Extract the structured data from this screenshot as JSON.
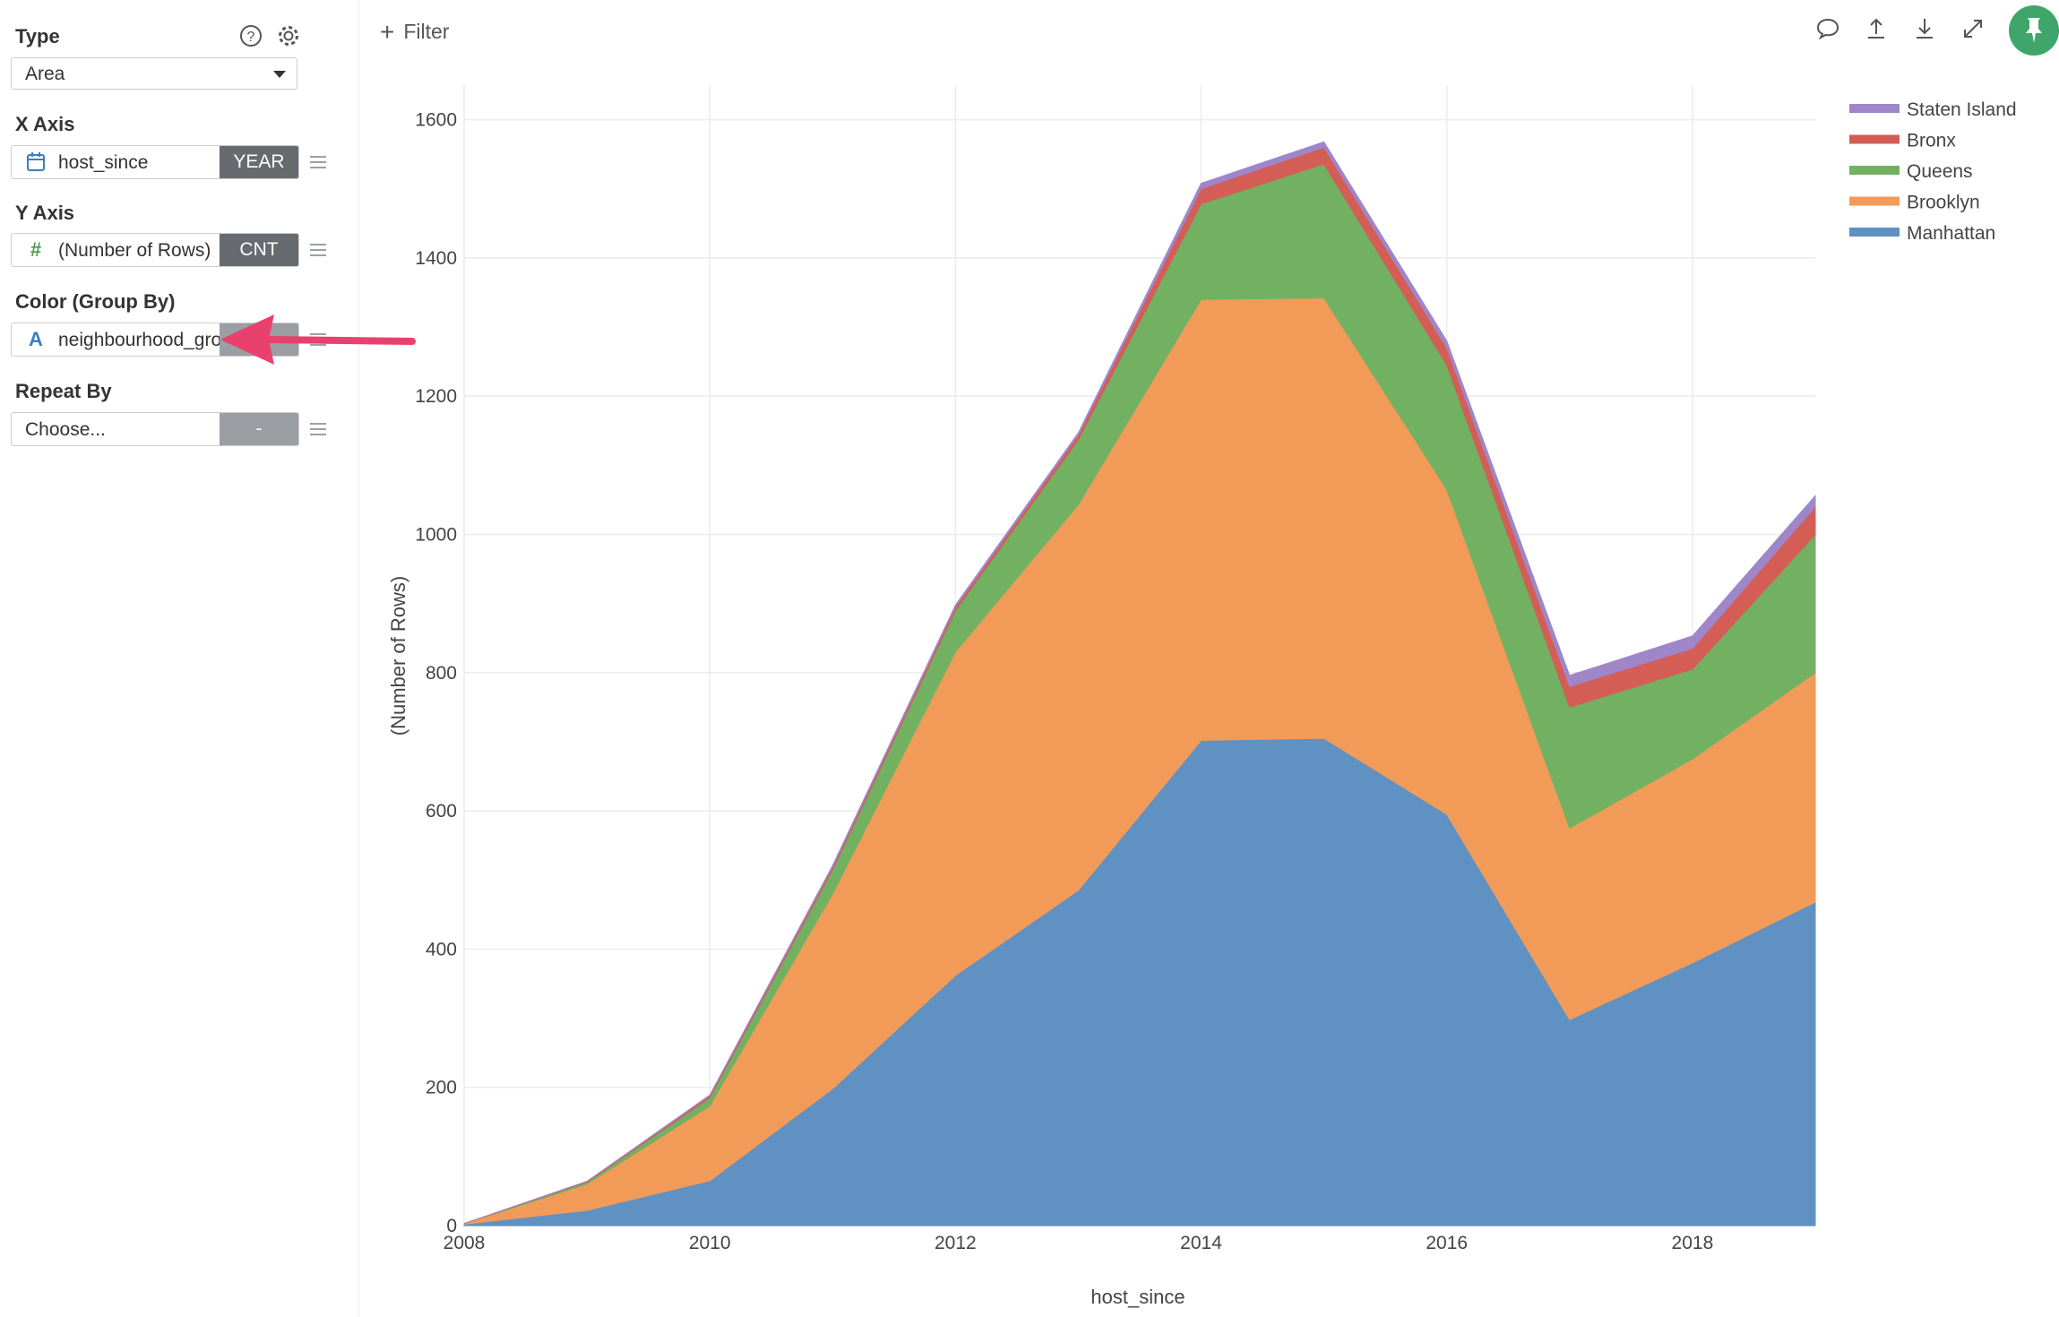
{
  "sidebar": {
    "type": {
      "label": "Type",
      "value": "Area"
    },
    "x_axis": {
      "label": "X Axis",
      "field": "host_since",
      "agg": "YEAR",
      "icon": "calendar-icon"
    },
    "y_axis": {
      "label": "Y Axis",
      "field": "(Number of Rows)",
      "agg": "CNT",
      "icon": "hash-icon"
    },
    "color": {
      "label": "Color (Group By)",
      "field": "neighbourhood_group",
      "agg": "",
      "icon": "text-type-icon"
    },
    "repeat": {
      "label": "Repeat By",
      "field": "Choose...",
      "agg": "-"
    }
  },
  "toolbar": {
    "filter_label": "Filter"
  },
  "colors": {
    "Manhattan": "#5f91c2",
    "Brooklyn": "#f29b58",
    "Queens": "#72b162",
    "Bronx": "#d45d56",
    "Staten Island": "#9f86c8",
    "arrow": "#e8416e",
    "pin": "#3fa66b"
  },
  "chart_data": {
    "type": "area",
    "stacked": true,
    "xlabel": "host_since",
    "ylabel": "(Number of Rows)",
    "x": [
      2008,
      2009,
      2010,
      2011,
      2012,
      2013,
      2014,
      2015,
      2016,
      2017,
      2018,
      2019
    ],
    "xticks": [
      2008,
      2010,
      2012,
      2014,
      2016,
      2018
    ],
    "yticks": [
      0,
      200,
      400,
      600,
      800,
      1000,
      1200,
      1400,
      1600
    ],
    "xlim": [
      2008,
      2019
    ],
    "ylim": [
      0,
      1650
    ],
    "grid": true,
    "legend_position": "top-right",
    "series": [
      {
        "name": "Manhattan",
        "values": [
          2,
          22,
          65,
          198,
          362,
          485,
          702,
          705,
          595,
          298,
          380,
          468
        ]
      },
      {
        "name": "Brooklyn",
        "values": [
          1,
          38,
          108,
          282,
          468,
          558,
          638,
          637,
          470,
          277,
          295,
          332
        ]
      },
      {
        "name": "Queens",
        "values": [
          0,
          3,
          12,
          35,
          60,
          94,
          138,
          194,
          180,
          175,
          130,
          200
        ]
      },
      {
        "name": "Bronx",
        "values": [
          0,
          1,
          3,
          4,
          5,
          7,
          22,
          24,
          25,
          30,
          30,
          40
        ]
      },
      {
        "name": "Staten Island",
        "values": [
          0,
          0,
          1,
          2,
          3,
          3,
          8,
          8,
          10,
          16,
          18,
          16
        ]
      }
    ],
    "legend_order": [
      "Staten Island",
      "Bronx",
      "Queens",
      "Brooklyn",
      "Manhattan"
    ]
  }
}
